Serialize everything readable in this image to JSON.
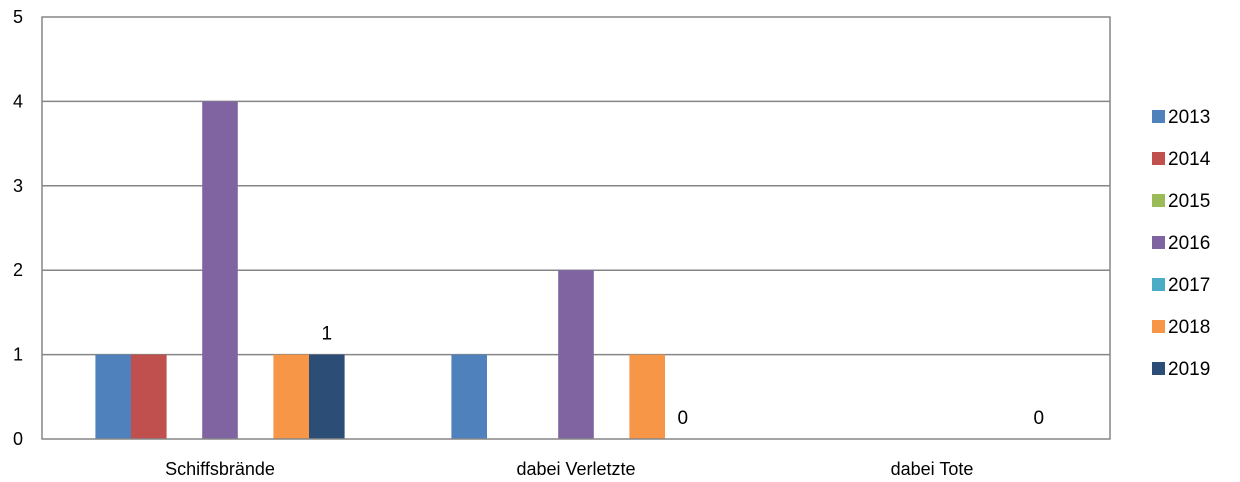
{
  "chart_data": {
    "type": "bar",
    "categories": [
      "Schiffsbrände",
      "dabei Verletzte",
      "dabei Tote"
    ],
    "series": [
      {
        "name": "2013",
        "color": "#4F81BD",
        "values": [
          1,
          1,
          0
        ]
      },
      {
        "name": "2014",
        "color": "#C0504D",
        "values": [
          1,
          0,
          0
        ]
      },
      {
        "name": "2015",
        "color": "#9BBB59",
        "values": [
          0,
          0,
          0
        ]
      },
      {
        "name": "2016",
        "color": "#8064A2",
        "values": [
          4,
          2,
          0
        ]
      },
      {
        "name": "2017",
        "color": "#4BACC6",
        "values": [
          0,
          0,
          0
        ]
      },
      {
        "name": "2018",
        "color": "#F79646",
        "values": [
          1,
          1,
          0
        ]
      },
      {
        "name": "2019",
        "color": "#2C4D75",
        "values": [
          1,
          0,
          0
        ]
      }
    ],
    "data_labels": [
      {
        "series": "2019",
        "category": "Schiffsbrände",
        "text": "1"
      },
      {
        "series": "2019",
        "category": "dabei Verletzte",
        "text": "0"
      },
      {
        "series": "2019",
        "category": "dabei Tote",
        "text": "0"
      }
    ],
    "yticks": [
      "0",
      "1",
      "2",
      "3",
      "4",
      "5"
    ],
    "ylim": [
      0,
      5
    ],
    "grid": true,
    "legend_position": "right"
  }
}
